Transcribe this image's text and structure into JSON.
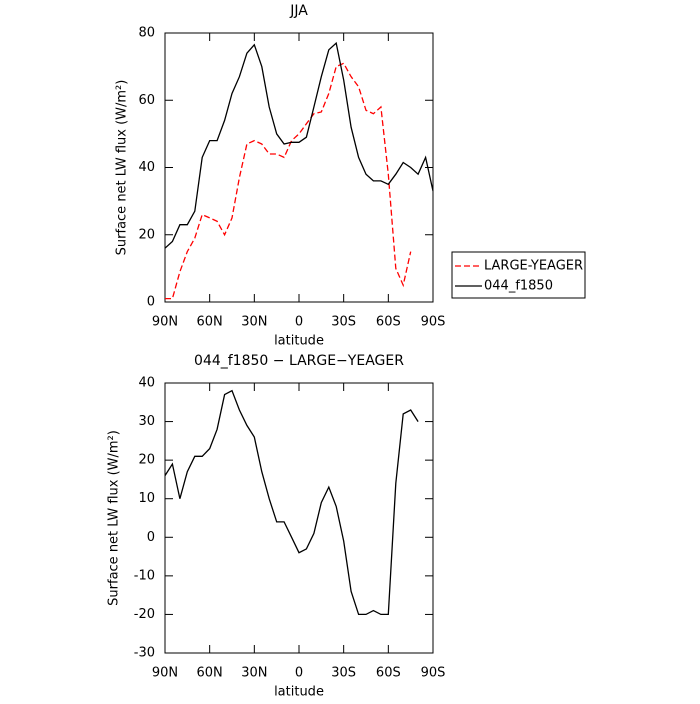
{
  "chart_data": [
    {
      "type": "line",
      "title": "JJA",
      "xlabel": "latitude",
      "ylabel": "Surface net LW flux (W/m²)",
      "x": [
        90,
        85,
        80,
        75,
        70,
        65,
        60,
        55,
        50,
        45,
        40,
        35,
        30,
        25,
        20,
        15,
        10,
        5,
        0,
        -5,
        -10,
        -15,
        -20,
        -25,
        -30,
        -35,
        -40,
        -45,
        -50,
        -55,
        -60,
        -65,
        -70,
        -75,
        -80,
        -85,
        -90
      ],
      "series": [
        {
          "name": "LARGE-YEAGER",
          "color": "#ff0000",
          "dash": true,
          "values": [
            1,
            1,
            9,
            15,
            19,
            26,
            25,
            24,
            20,
            25,
            37,
            47,
            48,
            47,
            44,
            44,
            43,
            48,
            50,
            53,
            56,
            56.5,
            62,
            70,
            71,
            67,
            64,
            57,
            56,
            58,
            38,
            10,
            5,
            15,
            null,
            null,
            null
          ]
        },
        {
          "name": "044_f1850",
          "color": "#000000",
          "dash": false,
          "values": [
            16,
            18,
            23,
            23,
            27,
            43,
            48,
            48,
            54,
            62,
            67,
            74,
            76.5,
            70,
            58,
            50,
            47,
            47.5,
            47.5,
            49,
            58,
            67,
            75,
            77,
            66,
            52,
            43,
            38,
            36,
            36,
            35,
            38,
            41.5,
            40,
            38,
            43,
            33
          ]
        }
      ],
      "xlim": [
        90,
        -90
      ],
      "xticks": [
        {
          "value": 90,
          "label": "90N"
        },
        {
          "value": 60,
          "label": "60N"
        },
        {
          "value": 30,
          "label": "30N"
        },
        0,
        {
          "value": -30,
          "label": "30S"
        },
        {
          "value": -60,
          "label": "60S"
        },
        {
          "value": -90,
          "label": "90S"
        }
      ],
      "ylim": [
        0,
        80
      ],
      "yticks": [
        0,
        20,
        40,
        60,
        80
      ],
      "legend": "right"
    },
    {
      "type": "line",
      "title": "044_f1850 − LARGE−YEAGER",
      "xlabel": "latitude",
      "ylabel": "Surface net LW flux (W/m²)",
      "x": [
        90,
        85,
        80,
        75,
        70,
        65,
        60,
        55,
        50,
        45,
        40,
        35,
        30,
        25,
        20,
        15,
        10,
        5,
        0,
        -5,
        -10,
        -15,
        -20,
        -25,
        -30,
        -35,
        -40,
        -45,
        -50,
        -55,
        -60,
        -65,
        -70,
        -75,
        -80,
        -85,
        -90
      ],
      "values": [
        16,
        19,
        10,
        17,
        21,
        21,
        23,
        28,
        37,
        38,
        33,
        29,
        26,
        17,
        10,
        4,
        4,
        0,
        -4,
        -3,
        1,
        9,
        13,
        8,
        -1,
        -14,
        -20,
        -20,
        -19,
        -20,
        -20,
        14,
        32,
        33,
        30,
        null,
        null
      ],
      "color": "#000000",
      "xlim": [
        90,
        -90
      ],
      "xticks": [
        {
          "value": 90,
          "label": "90N"
        },
        {
          "value": 60,
          "label": "60N"
        },
        {
          "value": 30,
          "label": "30N"
        },
        0,
        {
          "value": -30,
          "label": "30S"
        },
        {
          "value": -60,
          "label": "60S"
        },
        {
          "value": -90,
          "label": "90S"
        }
      ],
      "ylim": [
        -30,
        40
      ],
      "yticks": [
        -30,
        -20,
        -10,
        0,
        10,
        20,
        30,
        40
      ]
    }
  ]
}
